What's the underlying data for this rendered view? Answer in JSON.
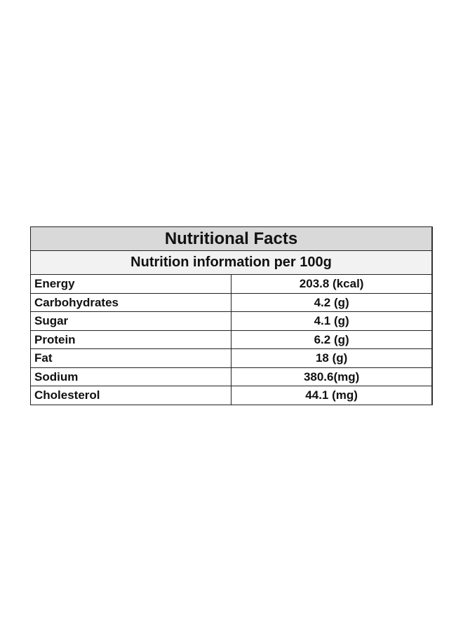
{
  "table": {
    "title": "Nutritional Facts",
    "subtitle": "Nutrition information per 100g",
    "rows": [
      [
        "Energy",
        "203.8 (kcal)"
      ],
      [
        "Carbohydrates",
        "4.2 (g)"
      ],
      [
        "Sugar",
        "4.1 (g)"
      ],
      [
        "Protein",
        "6.2 (g)"
      ],
      [
        "Fat",
        "18 (g)"
      ],
      [
        "Sodium",
        "380.6(mg)"
      ],
      [
        "Cholesterol",
        "44.1 (mg)"
      ]
    ]
  }
}
